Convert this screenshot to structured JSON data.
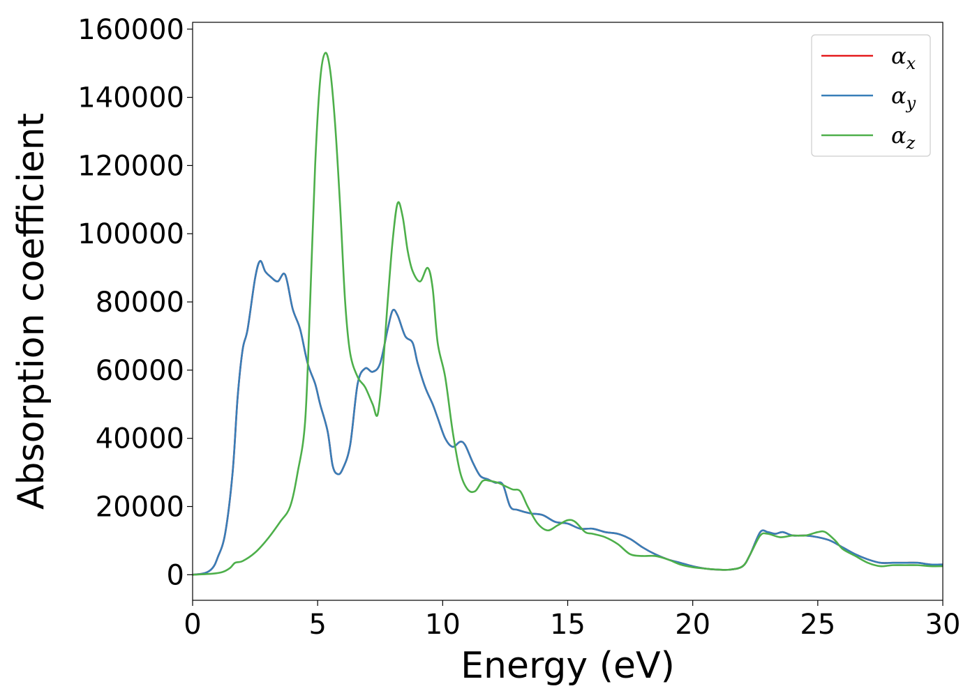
{
  "chart_data": {
    "type": "line",
    "title": "",
    "xlabel": "Energy (eV)",
    "ylabel": "Absorption coefficient",
    "xlim": [
      0,
      30
    ],
    "ylim": [
      -7500,
      162000
    ],
    "xticks": [
      0,
      5,
      10,
      15,
      20,
      25,
      30
    ],
    "yticks": [
      0,
      20000,
      40000,
      60000,
      80000,
      100000,
      120000,
      140000,
      160000
    ],
    "grid": false,
    "legend_position": "top-right",
    "series": [
      {
        "name": "αx",
        "legend_base": "α",
        "legend_sub": "x",
        "color": "#e41a1c",
        "x": [
          0,
          0.5,
          0.8,
          1.0,
          1.3,
          1.6,
          1.8,
          2.0,
          2.2,
          2.5,
          2.7,
          2.9,
          3.1,
          3.4,
          3.7,
          4.0,
          4.3,
          4.6,
          4.9,
          5.1,
          5.4,
          5.6,
          5.8,
          6.0,
          6.3,
          6.6,
          6.9,
          7.2,
          7.5,
          7.8,
          8.0,
          8.2,
          8.5,
          8.8,
          9.0,
          9.3,
          9.6,
          9.8,
          10.1,
          10.4,
          10.7,
          10.9,
          11.2,
          11.5,
          11.8,
          12.1,
          12.4,
          12.7,
          13.0,
          13.5,
          14.0,
          14.5,
          15.0,
          15.5,
          16.0,
          16.5,
          17.0,
          17.5,
          18.0,
          18.5,
          19.0,
          19.5,
          20.0,
          20.5,
          21.0,
          21.5,
          22.0,
          22.3,
          22.7,
          23.0,
          23.3,
          23.6,
          24.0,
          24.5,
          25.0,
          25.5,
          26.0,
          26.5,
          27.0,
          27.5,
          28.0,
          28.5,
          29.0,
          29.5,
          30.0
        ],
        "y": [
          0,
          500,
          2000,
          5000,
          12000,
          30000,
          52000,
          66000,
          72000,
          87000,
          92000,
          89000,
          87500,
          86000,
          88000,
          78000,
          72000,
          62000,
          56000,
          50000,
          42000,
          32000,
          29500,
          31000,
          38000,
          56000,
          60500,
          59500,
          62000,
          72000,
          77500,
          76000,
          70000,
          68000,
          62000,
          55000,
          50000,
          46000,
          40000,
          37500,
          39000,
          38000,
          33000,
          29000,
          28000,
          27000,
          26500,
          20000,
          19000,
          18000,
          17500,
          15500,
          15000,
          13500,
          13500,
          12500,
          12000,
          10500,
          8000,
          6000,
          4500,
          3500,
          2500,
          1800,
          1500,
          1500,
          2500,
          6000,
          12500,
          12500,
          12000,
          12500,
          11500,
          11500,
          11000,
          10000,
          8000,
          6000,
          4500,
          3500,
          3500,
          3500,
          3500,
          3000,
          3000
        ]
      },
      {
        "name": "αy",
        "legend_base": "α",
        "legend_sub": "y",
        "color": "#377eb8",
        "x": [
          0,
          0.5,
          0.8,
          1.0,
          1.3,
          1.6,
          1.8,
          2.0,
          2.2,
          2.5,
          2.7,
          2.9,
          3.1,
          3.4,
          3.7,
          4.0,
          4.3,
          4.6,
          4.9,
          5.1,
          5.4,
          5.6,
          5.8,
          6.0,
          6.3,
          6.6,
          6.9,
          7.2,
          7.5,
          7.8,
          8.0,
          8.2,
          8.5,
          8.8,
          9.0,
          9.3,
          9.6,
          9.8,
          10.1,
          10.4,
          10.7,
          10.9,
          11.2,
          11.5,
          11.8,
          12.1,
          12.4,
          12.7,
          13.0,
          13.5,
          14.0,
          14.5,
          15.0,
          15.5,
          16.0,
          16.5,
          17.0,
          17.5,
          18.0,
          18.5,
          19.0,
          19.5,
          20.0,
          20.5,
          21.0,
          21.5,
          22.0,
          22.3,
          22.7,
          23.0,
          23.3,
          23.6,
          24.0,
          24.5,
          25.0,
          25.5,
          26.0,
          26.5,
          27.0,
          27.5,
          28.0,
          28.5,
          29.0,
          29.5,
          30.0
        ],
        "y": [
          0,
          500,
          2000,
          5000,
          12000,
          30000,
          52000,
          66000,
          72000,
          87000,
          92000,
          89000,
          87500,
          86000,
          88000,
          78000,
          72000,
          62000,
          56000,
          50000,
          42000,
          32000,
          29500,
          31000,
          38000,
          56000,
          60500,
          59500,
          62000,
          72000,
          77500,
          76000,
          70000,
          68000,
          62000,
          55000,
          50000,
          46000,
          40000,
          37500,
          39000,
          38000,
          33000,
          29000,
          28000,
          27000,
          26500,
          20000,
          19000,
          18000,
          17500,
          15500,
          15000,
          13500,
          13500,
          12500,
          12000,
          10500,
          8000,
          6000,
          4500,
          3500,
          2500,
          1800,
          1500,
          1500,
          2500,
          6000,
          12500,
          12500,
          12000,
          12500,
          11500,
          11500,
          11000,
          10000,
          8000,
          6000,
          4500,
          3500,
          3500,
          3500,
          3500,
          3000,
          3000
        ]
      },
      {
        "name": "αz",
        "legend_base": "α",
        "legend_sub": "z",
        "color": "#4daf4a",
        "x": [
          0,
          0.8,
          1.2,
          1.5,
          1.7,
          2.0,
          2.5,
          3.0,
          3.5,
          3.9,
          4.2,
          4.5,
          4.7,
          4.9,
          5.1,
          5.3,
          5.5,
          5.7,
          5.9,
          6.1,
          6.3,
          6.6,
          6.9,
          7.2,
          7.4,
          7.6,
          7.8,
          8.0,
          8.2,
          8.4,
          8.6,
          8.8,
          9.1,
          9.4,
          9.6,
          9.8,
          10.1,
          10.4,
          10.7,
          11.0,
          11.3,
          11.6,
          11.9,
          12.2,
          12.5,
          12.8,
          13.1,
          13.4,
          13.8,
          14.2,
          14.6,
          15.0,
          15.3,
          15.7,
          16.0,
          16.5,
          17.0,
          17.5,
          18.0,
          18.5,
          19.0,
          19.5,
          20.0,
          20.5,
          21.0,
          21.5,
          22.0,
          22.3,
          22.7,
          23.0,
          23.5,
          24.0,
          24.5,
          25.0,
          25.3,
          25.7,
          26.0,
          26.5,
          27.0,
          27.5,
          28.0,
          28.5,
          29.0,
          29.5,
          30.0
        ],
        "y": [
          0,
          300,
          800,
          2000,
          3500,
          4000,
          6500,
          10500,
          15500,
          20000,
          30000,
          45000,
          80000,
          120000,
          145000,
          153000,
          148000,
          132000,
          108000,
          80000,
          65000,
          58000,
          55000,
          50000,
          47000,
          60000,
          80000,
          98000,
          109000,
          105000,
          95000,
          89000,
          86000,
          90000,
          84000,
          68000,
          58000,
          42000,
          30000,
          25000,
          24500,
          27500,
          27500,
          27000,
          26000,
          25000,
          24500,
          20000,
          15000,
          13000,
          14500,
          16000,
          15500,
          12500,
          12000,
          11000,
          9000,
          6000,
          5500,
          5500,
          4500,
          3000,
          2200,
          1800,
          1500,
          1500,
          2500,
          6000,
          11500,
          12000,
          11000,
          11500,
          11500,
          12500,
          12500,
          10000,
          7500,
          5500,
          3500,
          2500,
          2800,
          2800,
          2800,
          2500,
          2500
        ]
      }
    ]
  }
}
